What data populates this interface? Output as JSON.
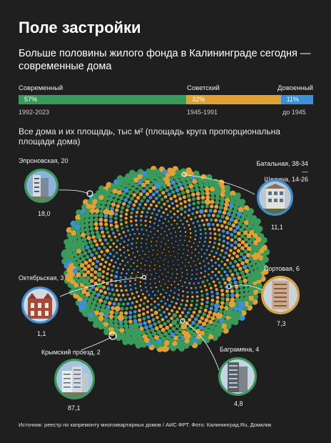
{
  "title": "Поле застройки",
  "subtitle": "Больше половины жилого фонда в Калининграде сегодня — современные дома",
  "bar": {
    "segments": [
      {
        "label": "Современный",
        "pct_text": "57%",
        "value": 57,
        "years": "1992-2023",
        "color": "#3a9a5b"
      },
      {
        "label": "Советский",
        "pct_text": "32%",
        "value": 32,
        "years": "1945-1991",
        "color": "#e2a133"
      },
      {
        "label": "Довоенный",
        "pct_text": "11%",
        "value": 11,
        "years": "до 1945",
        "color": "#3d8fd6"
      }
    ]
  },
  "caption": "Все дома и их площадь, тыс м² (площадь круга пропорциональна площади дома)",
  "chart_data": {
    "type": "scatter",
    "title": "Все дома и их площадь, тыс м²",
    "series": [
      {
        "name": "Современный",
        "color": "#3a9a5b"
      },
      {
        "name": "Советский",
        "color": "#e2a133"
      },
      {
        "name": "Довоенный",
        "color": "#3d8fd6"
      }
    ],
    "highlighted_houses": [
      {
        "name": "Эпроновская, 20",
        "area": 18.0,
        "area_text": "18,0",
        "era": "Современный"
      },
      {
        "name": "Батальная, 38-34 — Щедина, 14-26",
        "area": 11.1,
        "area_text": "11,1",
        "era": "Довоенный"
      },
      {
        "name": "Портовая, 6",
        "area": 7.3,
        "area_text": "7,3",
        "era": "Советский"
      },
      {
        "name": "Октябрьская, 3",
        "area": 1.1,
        "area_text": "1,1",
        "era": "Довоенный"
      },
      {
        "name": "Крымский проезд, 2",
        "area": 87.1,
        "area_text": "87,1",
        "era": "Современный"
      },
      {
        "name": "Баграмяна, 4",
        "area": 4.8,
        "area_text": "4,8",
        "era": "Современный"
      }
    ]
  },
  "labels": {
    "epronovskaya": "Эпроновская, 20",
    "epronovskaya_val": "18,0",
    "batalnaya_1": "Батальная, 38-34 —",
    "batalnaya_2": "Щедина, 14-26",
    "batalnaya_val": "11,1",
    "portovaya": "Портовая, 6",
    "portovaya_val": "7,3",
    "oktyabrskaya": "Октябрьская, 3",
    "oktyabrskaya_val": "1,1",
    "krymsky": "Крымский проезд, 2",
    "krymsky_val": "87,1",
    "bagramyana": "Баграмяна, 4",
    "bagramyana_val": "4,8"
  },
  "source": "Источник: реестр по капремонту многоквартирных домов / АИС ФРТ. Фото: Калининград.Ru, Домклик"
}
